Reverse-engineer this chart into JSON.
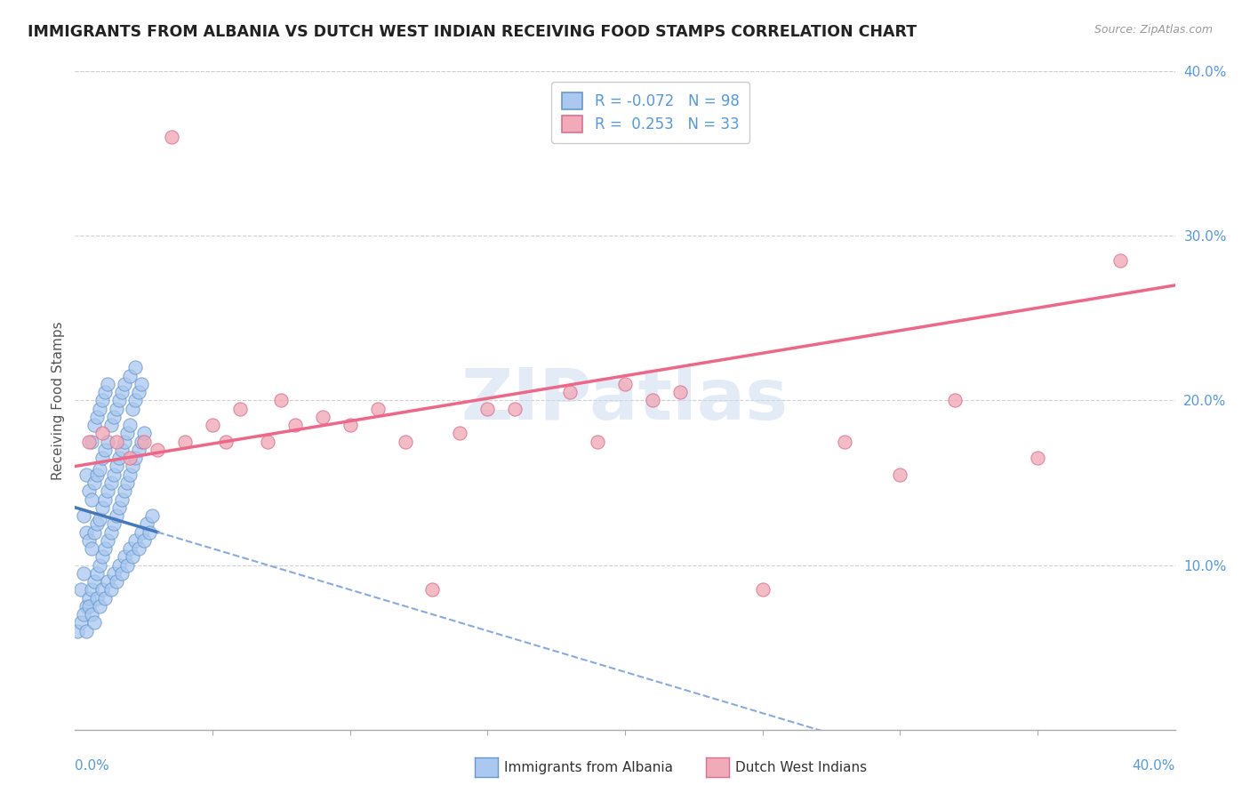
{
  "title": "IMMIGRANTS FROM ALBANIA VS DUTCH WEST INDIAN RECEIVING FOOD STAMPS CORRELATION CHART",
  "source": "Source: ZipAtlas.com",
  "ylabel": "Receiving Food Stamps",
  "ytick_values": [
    0.1,
    0.2,
    0.3,
    0.4
  ],
  "ytick_labels": [
    "10.0%",
    "20.0%",
    "30.0%",
    "40.0%"
  ],
  "xlim": [
    0.0,
    0.4
  ],
  "ylim": [
    0.0,
    0.4
  ],
  "legend_r_albania": "-0.072",
  "legend_n_albania": "98",
  "legend_r_dutch": "0.253",
  "legend_n_dutch": "33",
  "watermark": "ZIPatlas",
  "background_color": "#ffffff",
  "grid_color": "#d0d0d0",
  "albania_fill": "#aac8f0",
  "albania_edge": "#6699cc",
  "dutch_fill": "#f0aab8",
  "dutch_edge": "#dd7090",
  "albania_trend_solid_color": "#4477bb",
  "albania_trend_dash_color": "#88aadd",
  "dutch_trend_color": "#ee6688",
  "albania_scatter": {
    "x": [
      0.002,
      0.003,
      0.003,
      0.004,
      0.004,
      0.004,
      0.005,
      0.005,
      0.005,
      0.006,
      0.006,
      0.006,
      0.006,
      0.007,
      0.007,
      0.007,
      0.007,
      0.008,
      0.008,
      0.008,
      0.008,
      0.009,
      0.009,
      0.009,
      0.009,
      0.01,
      0.01,
      0.01,
      0.01,
      0.011,
      0.011,
      0.011,
      0.011,
      0.012,
      0.012,
      0.012,
      0.012,
      0.013,
      0.013,
      0.013,
      0.014,
      0.014,
      0.014,
      0.015,
      0.015,
      0.015,
      0.016,
      0.016,
      0.016,
      0.017,
      0.017,
      0.017,
      0.018,
      0.018,
      0.018,
      0.019,
      0.019,
      0.02,
      0.02,
      0.02,
      0.021,
      0.021,
      0.022,
      0.022,
      0.022,
      0.023,
      0.023,
      0.024,
      0.024,
      0.025,
      0.001,
      0.002,
      0.003,
      0.004,
      0.005,
      0.006,
      0.007,
      0.008,
      0.009,
      0.01,
      0.011,
      0.012,
      0.013,
      0.014,
      0.015,
      0.016,
      0.017,
      0.018,
      0.019,
      0.02,
      0.021,
      0.022,
      0.023,
      0.024,
      0.025,
      0.026,
      0.027,
      0.028
    ],
    "y": [
      0.085,
      0.095,
      0.13,
      0.075,
      0.12,
      0.155,
      0.08,
      0.115,
      0.145,
      0.085,
      0.11,
      0.14,
      0.175,
      0.09,
      0.12,
      0.15,
      0.185,
      0.095,
      0.125,
      0.155,
      0.19,
      0.1,
      0.128,
      0.158,
      0.195,
      0.105,
      0.135,
      0.165,
      0.2,
      0.11,
      0.14,
      0.17,
      0.205,
      0.115,
      0.145,
      0.175,
      0.21,
      0.12,
      0.15,
      0.185,
      0.125,
      0.155,
      0.19,
      0.13,
      0.16,
      0.195,
      0.135,
      0.165,
      0.2,
      0.14,
      0.17,
      0.205,
      0.145,
      0.175,
      0.21,
      0.15,
      0.18,
      0.155,
      0.185,
      0.215,
      0.16,
      0.195,
      0.165,
      0.2,
      0.22,
      0.17,
      0.205,
      0.175,
      0.21,
      0.18,
      0.06,
      0.065,
      0.07,
      0.06,
      0.075,
      0.07,
      0.065,
      0.08,
      0.075,
      0.085,
      0.08,
      0.09,
      0.085,
      0.095,
      0.09,
      0.1,
      0.095,
      0.105,
      0.1,
      0.11,
      0.105,
      0.115,
      0.11,
      0.12,
      0.115,
      0.125,
      0.12,
      0.13
    ]
  },
  "dutch_scatter": {
    "x": [
      0.005,
      0.01,
      0.015,
      0.02,
      0.025,
      0.03,
      0.035,
      0.04,
      0.05,
      0.055,
      0.06,
      0.07,
      0.075,
      0.08,
      0.09,
      0.1,
      0.11,
      0.12,
      0.13,
      0.14,
      0.15,
      0.16,
      0.18,
      0.19,
      0.2,
      0.21,
      0.22,
      0.25,
      0.28,
      0.3,
      0.32,
      0.35,
      0.38
    ],
    "y": [
      0.175,
      0.18,
      0.175,
      0.165,
      0.175,
      0.17,
      0.36,
      0.175,
      0.185,
      0.175,
      0.195,
      0.175,
      0.2,
      0.185,
      0.19,
      0.185,
      0.195,
      0.175,
      0.085,
      0.18,
      0.195,
      0.195,
      0.205,
      0.175,
      0.21,
      0.2,
      0.205,
      0.085,
      0.175,
      0.155,
      0.2,
      0.165,
      0.285
    ]
  },
  "albania_trend_start_y": 0.135,
  "albania_trend_end_y": 0.12,
  "albania_trend_solid_end_x": 0.03,
  "dutch_trend_start_y": 0.16,
  "dutch_trend_end_y": 0.27
}
